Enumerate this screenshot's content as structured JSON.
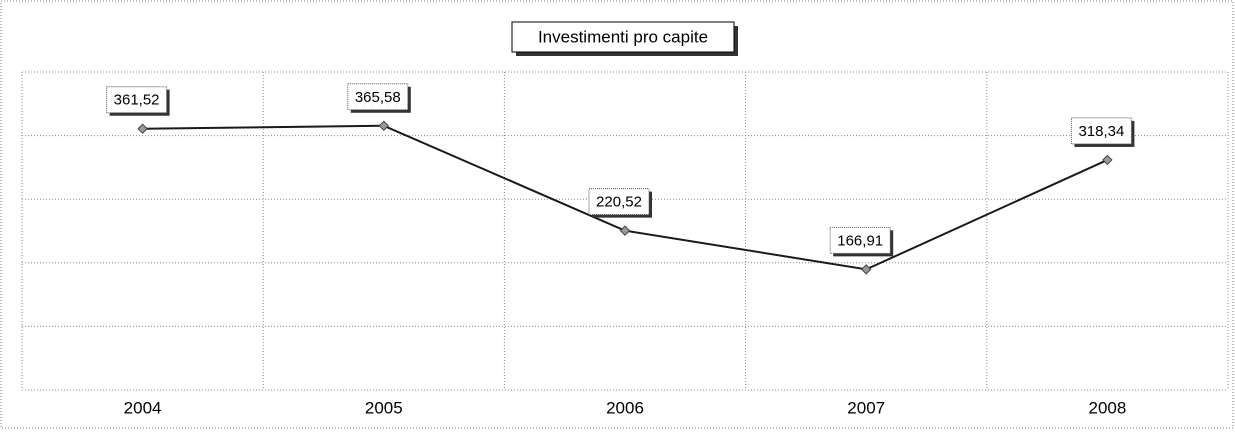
{
  "chart_data": {
    "type": "line",
    "title": "Investimenti pro capite",
    "categories": [
      "2004",
      "2005",
      "2006",
      "2007",
      "2008"
    ],
    "values": [
      361.52,
      365.58,
      220.52,
      166.91,
      318.34
    ],
    "value_labels": [
      "361,52",
      "365,58",
      "220,52",
      "166,91",
      "318,34"
    ],
    "color": "#1a1a1a",
    "ylim": [
      0,
      440
    ],
    "yticks": [
      0,
      88,
      176,
      264,
      352,
      440
    ],
    "grid": true
  }
}
